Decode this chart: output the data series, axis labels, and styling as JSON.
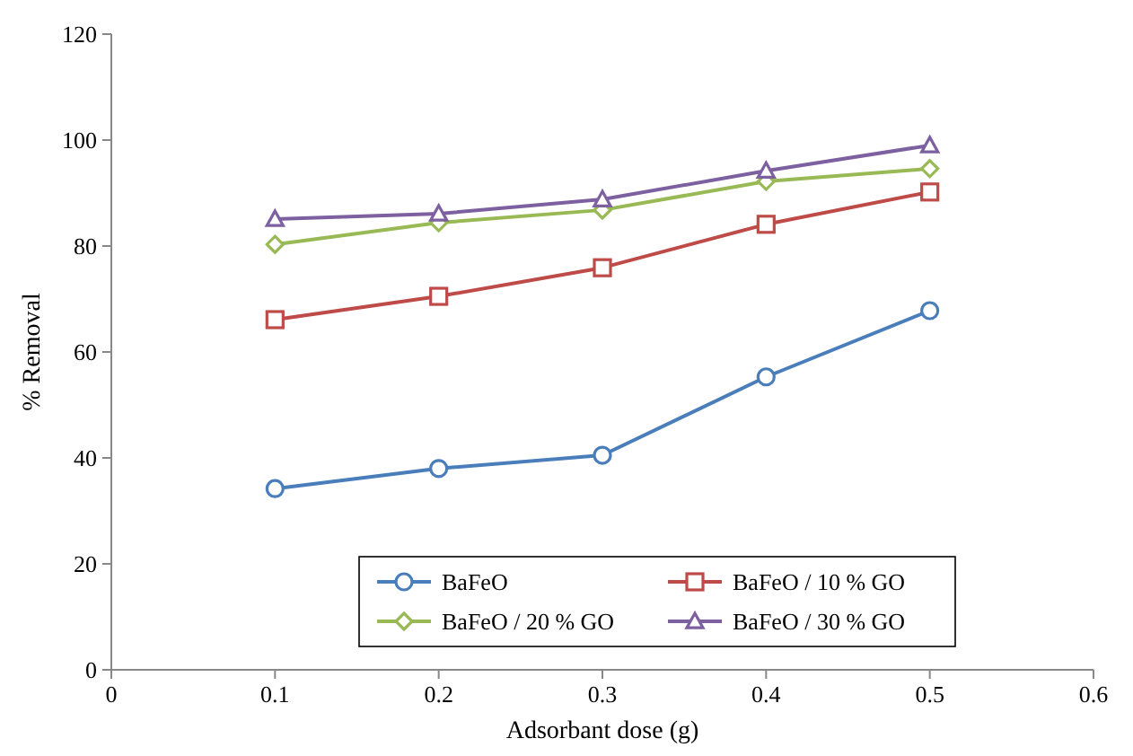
{
  "chart_data": {
    "type": "line",
    "xlabel": "Adsorbant dose (g)",
    "ylabel": "% Removal",
    "x": [
      0.1,
      0.2,
      0.3,
      0.4,
      0.5
    ],
    "xlim": [
      0,
      0.6
    ],
    "xticks": [
      0,
      0.1,
      0.2,
      0.3,
      0.4,
      0.5,
      0.6
    ],
    "ylim": [
      0,
      120
    ],
    "yticks": [
      0,
      20,
      40,
      60,
      80,
      100,
      120
    ],
    "legend": "bottom",
    "grid": false,
    "series": [
      {
        "name": "BaFeO",
        "color": "#4a7ebb",
        "marker": "circle",
        "values": [
          34.2,
          38,
          40.5,
          55.3,
          67.8
        ]
      },
      {
        "name": "BaFeO / 10 % GO",
        "color": "#be4b48",
        "marker": "square",
        "values": [
          66.1,
          70.5,
          75.9,
          84.1,
          90.2
        ]
      },
      {
        "name": "BaFeO / 20 % GO",
        "color": "#98b954",
        "marker": "diamond",
        "values": [
          80.3,
          84.4,
          86.8,
          92.2,
          94.6
        ]
      },
      {
        "name": "BaFeO / 30 % GO",
        "color": "#7d60a0",
        "marker": "triangle",
        "values": [
          85.1,
          86.1,
          88.8,
          94.2,
          99
        ]
      }
    ]
  }
}
